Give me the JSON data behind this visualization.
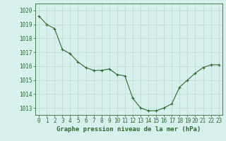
{
  "x": [
    0,
    1,
    2,
    3,
    4,
    5,
    6,
    7,
    8,
    9,
    10,
    11,
    12,
    13,
    14,
    15,
    16,
    17,
    18,
    19,
    20,
    21,
    22,
    23
  ],
  "y": [
    1019.6,
    1019.0,
    1018.7,
    1017.2,
    1016.9,
    1016.3,
    1015.9,
    1015.7,
    1015.7,
    1015.8,
    1015.4,
    1015.3,
    1013.7,
    1013.0,
    1012.8,
    1012.8,
    1013.0,
    1013.3,
    1014.5,
    1015.0,
    1015.5,
    1015.9,
    1016.1,
    1016.1
  ],
  "ylim": [
    1012.5,
    1020.5
  ],
  "yticks": [
    1013,
    1014,
    1015,
    1016,
    1017,
    1018,
    1019,
    1020
  ],
  "xticks": [
    0,
    1,
    2,
    3,
    4,
    5,
    6,
    7,
    8,
    9,
    10,
    11,
    12,
    13,
    14,
    15,
    16,
    17,
    18,
    19,
    20,
    21,
    22,
    23
  ],
  "xlabel": "Graphe pression niveau de la mer (hPa)",
  "line_color": "#2d6a2d",
  "marker_color": "#2d6a2d",
  "bg_color": "#d6f0ee",
  "grid_color": "#b8d8d4",
  "xlabel_fontsize": 6.5,
  "tick_fontsize": 5.5
}
